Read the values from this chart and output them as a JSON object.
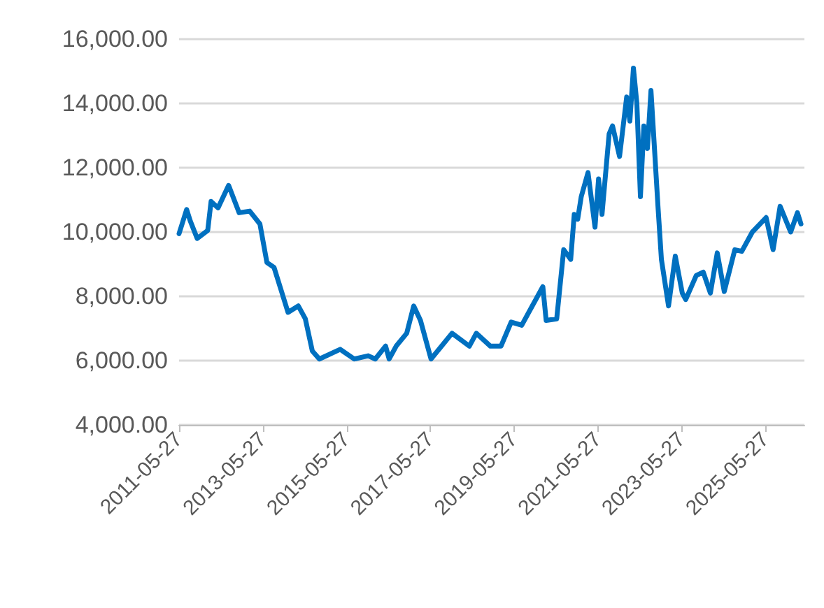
{
  "chart_data": {
    "type": "line",
    "x": [
      "2011-05-27",
      "2011-08",
      "2011-09",
      "2011-11",
      "2012-02",
      "2012-03",
      "2012-05",
      "2012-08",
      "2012-11",
      "2013-02",
      "2013-05",
      "2013-07",
      "2013-09",
      "2013-11",
      "2014-01",
      "2014-04",
      "2014-06",
      "2014-08",
      "2014-10",
      "2015-04",
      "2015-08",
      "2015-12",
      "2016-02",
      "2016-05",
      "2016-06",
      "2016-08",
      "2016-11",
      "2017-01",
      "2017-03",
      "2017-06",
      "2017-09",
      "2017-12",
      "2018-05",
      "2018-07",
      "2018-11",
      "2019-02",
      "2019-05",
      "2019-08",
      "2019-11",
      "2020-02",
      "2020-03",
      "2020-06",
      "2020-08",
      "2020-10",
      "2020-11",
      "2020-12",
      "2021-01",
      "2021-03",
      "2021-05",
      "2021-06",
      "2021-07",
      "2021-09",
      "2021-10",
      "2021-12",
      "2022-02",
      "2022-03",
      "2022-04",
      "2022-05",
      "2022-06",
      "2022-07",
      "2022-08",
      "2022-09",
      "2022-11",
      "2022-12",
      "2023-02",
      "2023-04",
      "2023-06",
      "2023-07",
      "2023-10",
      "2023-12",
      "2024-02",
      "2024-04",
      "2024-06",
      "2024-09",
      "2024-11",
      "2025-02",
      "2025-06",
      "2025-08",
      "2025-10",
      "2026-01",
      "2026-03",
      "2026-04"
    ],
    "series": [
      {
        "color": "#0070c0",
        "values": [
          9950,
          10700,
          10350,
          9800,
          10050,
          10950,
          10750,
          11450,
          10600,
          10650,
          10250,
          9050,
          8900,
          8200,
          7500,
          7700,
          7300,
          6300,
          6050,
          6350,
          6050,
          6150,
          6050,
          6450,
          6050,
          6450,
          6850,
          7700,
          7250,
          6050,
          6450,
          6850,
          6450,
          6850,
          6450,
          6450,
          7200,
          7100,
          7700,
          8300,
          7250,
          7300,
          9450,
          9150,
          10550,
          10400,
          11100,
          11850,
          10150,
          11650,
          10550,
          13050,
          13300,
          12350,
          14200,
          13450,
          15100,
          14000,
          11100,
          13300,
          12600,
          14400,
          10800,
          9150,
          7700,
          9250,
          8100,
          7900,
          8650,
          8750,
          8100,
          9350,
          8150,
          9450,
          9400,
          10000,
          10450,
          9450,
          10800,
          10000,
          10600,
          10250
        ]
      }
    ],
    "xlim": [
      "2011-05-27",
      "2026-05-01"
    ],
    "xticks": [
      "2011-05-27",
      "2013-05-27",
      "2015-05-27",
      "2017-05-27",
      "2019-05-27",
      "2021-05-27",
      "2023-05-27",
      "2025-05-27"
    ],
    "ylim": [
      4000,
      16000
    ],
    "yticks": [
      {
        "value": 4000,
        "label": "4,000.00"
      },
      {
        "value": 6000,
        "label": "6,000.00"
      },
      {
        "value": 8000,
        "label": "8,000.00"
      },
      {
        "value": 10000,
        "label": "10,000.00"
      },
      {
        "value": 12000,
        "label": "12,000.00"
      },
      {
        "value": 14000,
        "label": "14,000.00"
      },
      {
        "value": 16000,
        "label": "16,000.00"
      }
    ],
    "grid": "y",
    "marker": "none",
    "line_style": "solid"
  }
}
